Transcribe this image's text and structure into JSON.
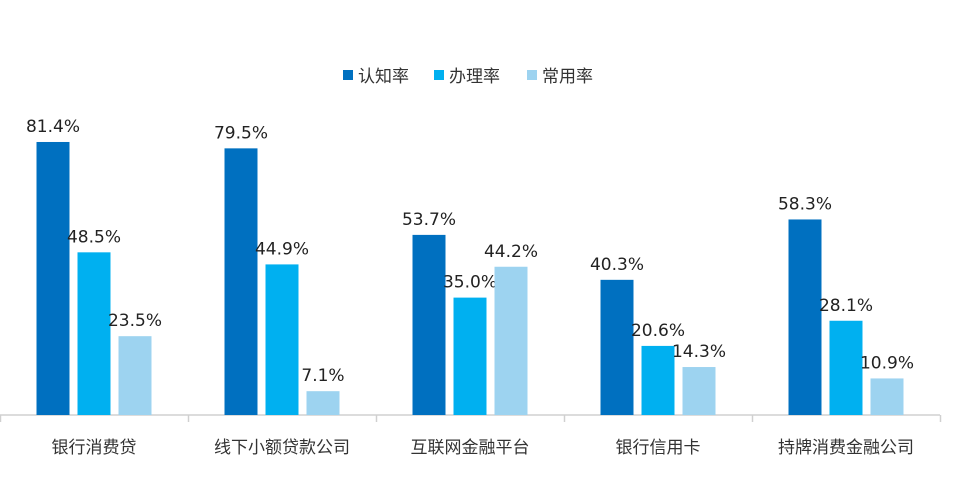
{
  "chart_data": {
    "type": "bar",
    "categories": [
      "银行消费贷",
      "线下小额贷款公司",
      "互联网金融平台",
      "银行信用卡",
      "持牌消费金融公司"
    ],
    "series": [
      {
        "name": "认知率",
        "color": "#0070c0",
        "values": [
          81.4,
          79.5,
          53.7,
          40.3,
          58.3
        ],
        "labels": [
          "81.4%",
          "79.5%",
          "53.7%",
          "40.3%",
          "58.3%"
        ]
      },
      {
        "name": "办理率",
        "color": "#00b0f0",
        "values": [
          48.5,
          44.9,
          35.0,
          20.6,
          28.1
        ],
        "labels": [
          "48.5%",
          "44.9%",
          "35.0%",
          "20.6%",
          "28.1%"
        ]
      },
      {
        "name": "常用率",
        "color": "#9dd3f0",
        "values": [
          23.5,
          7.1,
          44.2,
          14.3,
          10.9
        ],
        "labels": [
          "23.5%",
          "7.1%",
          "44.2%",
          "14.3%",
          "10.9%"
        ]
      }
    ],
    "legend_position": "top",
    "grid": false,
    "ylim": [
      0,
      100
    ],
    "unit": "%"
  }
}
